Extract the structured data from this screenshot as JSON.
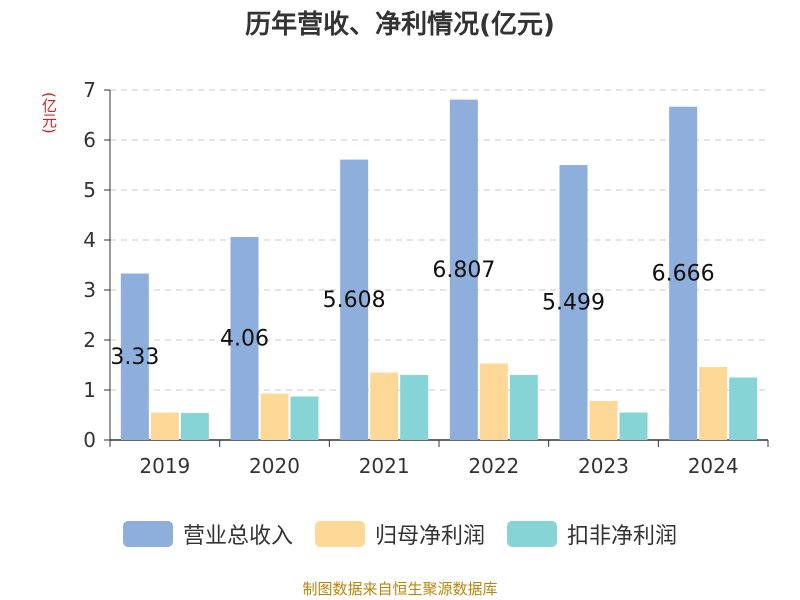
{
  "chart_data": {
    "type": "bar",
    "title": "历年营收、净利情况(亿元)",
    "ylabel": "(亿元)",
    "categories": [
      "2019",
      "2020",
      "2021",
      "2022",
      "2023",
      "2024"
    ],
    "series": [
      {
        "name": "营业总收入",
        "values": [
          3.33,
          4.06,
          5.608,
          6.807,
          5.499,
          6.666
        ],
        "color": "#8eaedb",
        "show_labels": true
      },
      {
        "name": "归母净利润",
        "values": [
          0.55,
          0.93,
          1.35,
          1.53,
          0.78,
          1.46
        ],
        "color": "#fdd897",
        "show_labels": false
      },
      {
        "name": "扣非净利润",
        "values": [
          0.54,
          0.87,
          1.3,
          1.3,
          0.55,
          1.25
        ],
        "color": "#86d4d6",
        "show_labels": false
      }
    ],
    "ylim": [
      0,
      7
    ],
    "yticks": [
      0,
      1,
      2,
      3,
      4,
      5,
      6,
      7
    ],
    "grid": true,
    "legend": "bottom"
  },
  "value_labels": [
    "3.33",
    "4.06",
    "5.608",
    "6.807",
    "5.499",
    "6.666"
  ],
  "source": "制图数据来自恒生聚源数据库"
}
